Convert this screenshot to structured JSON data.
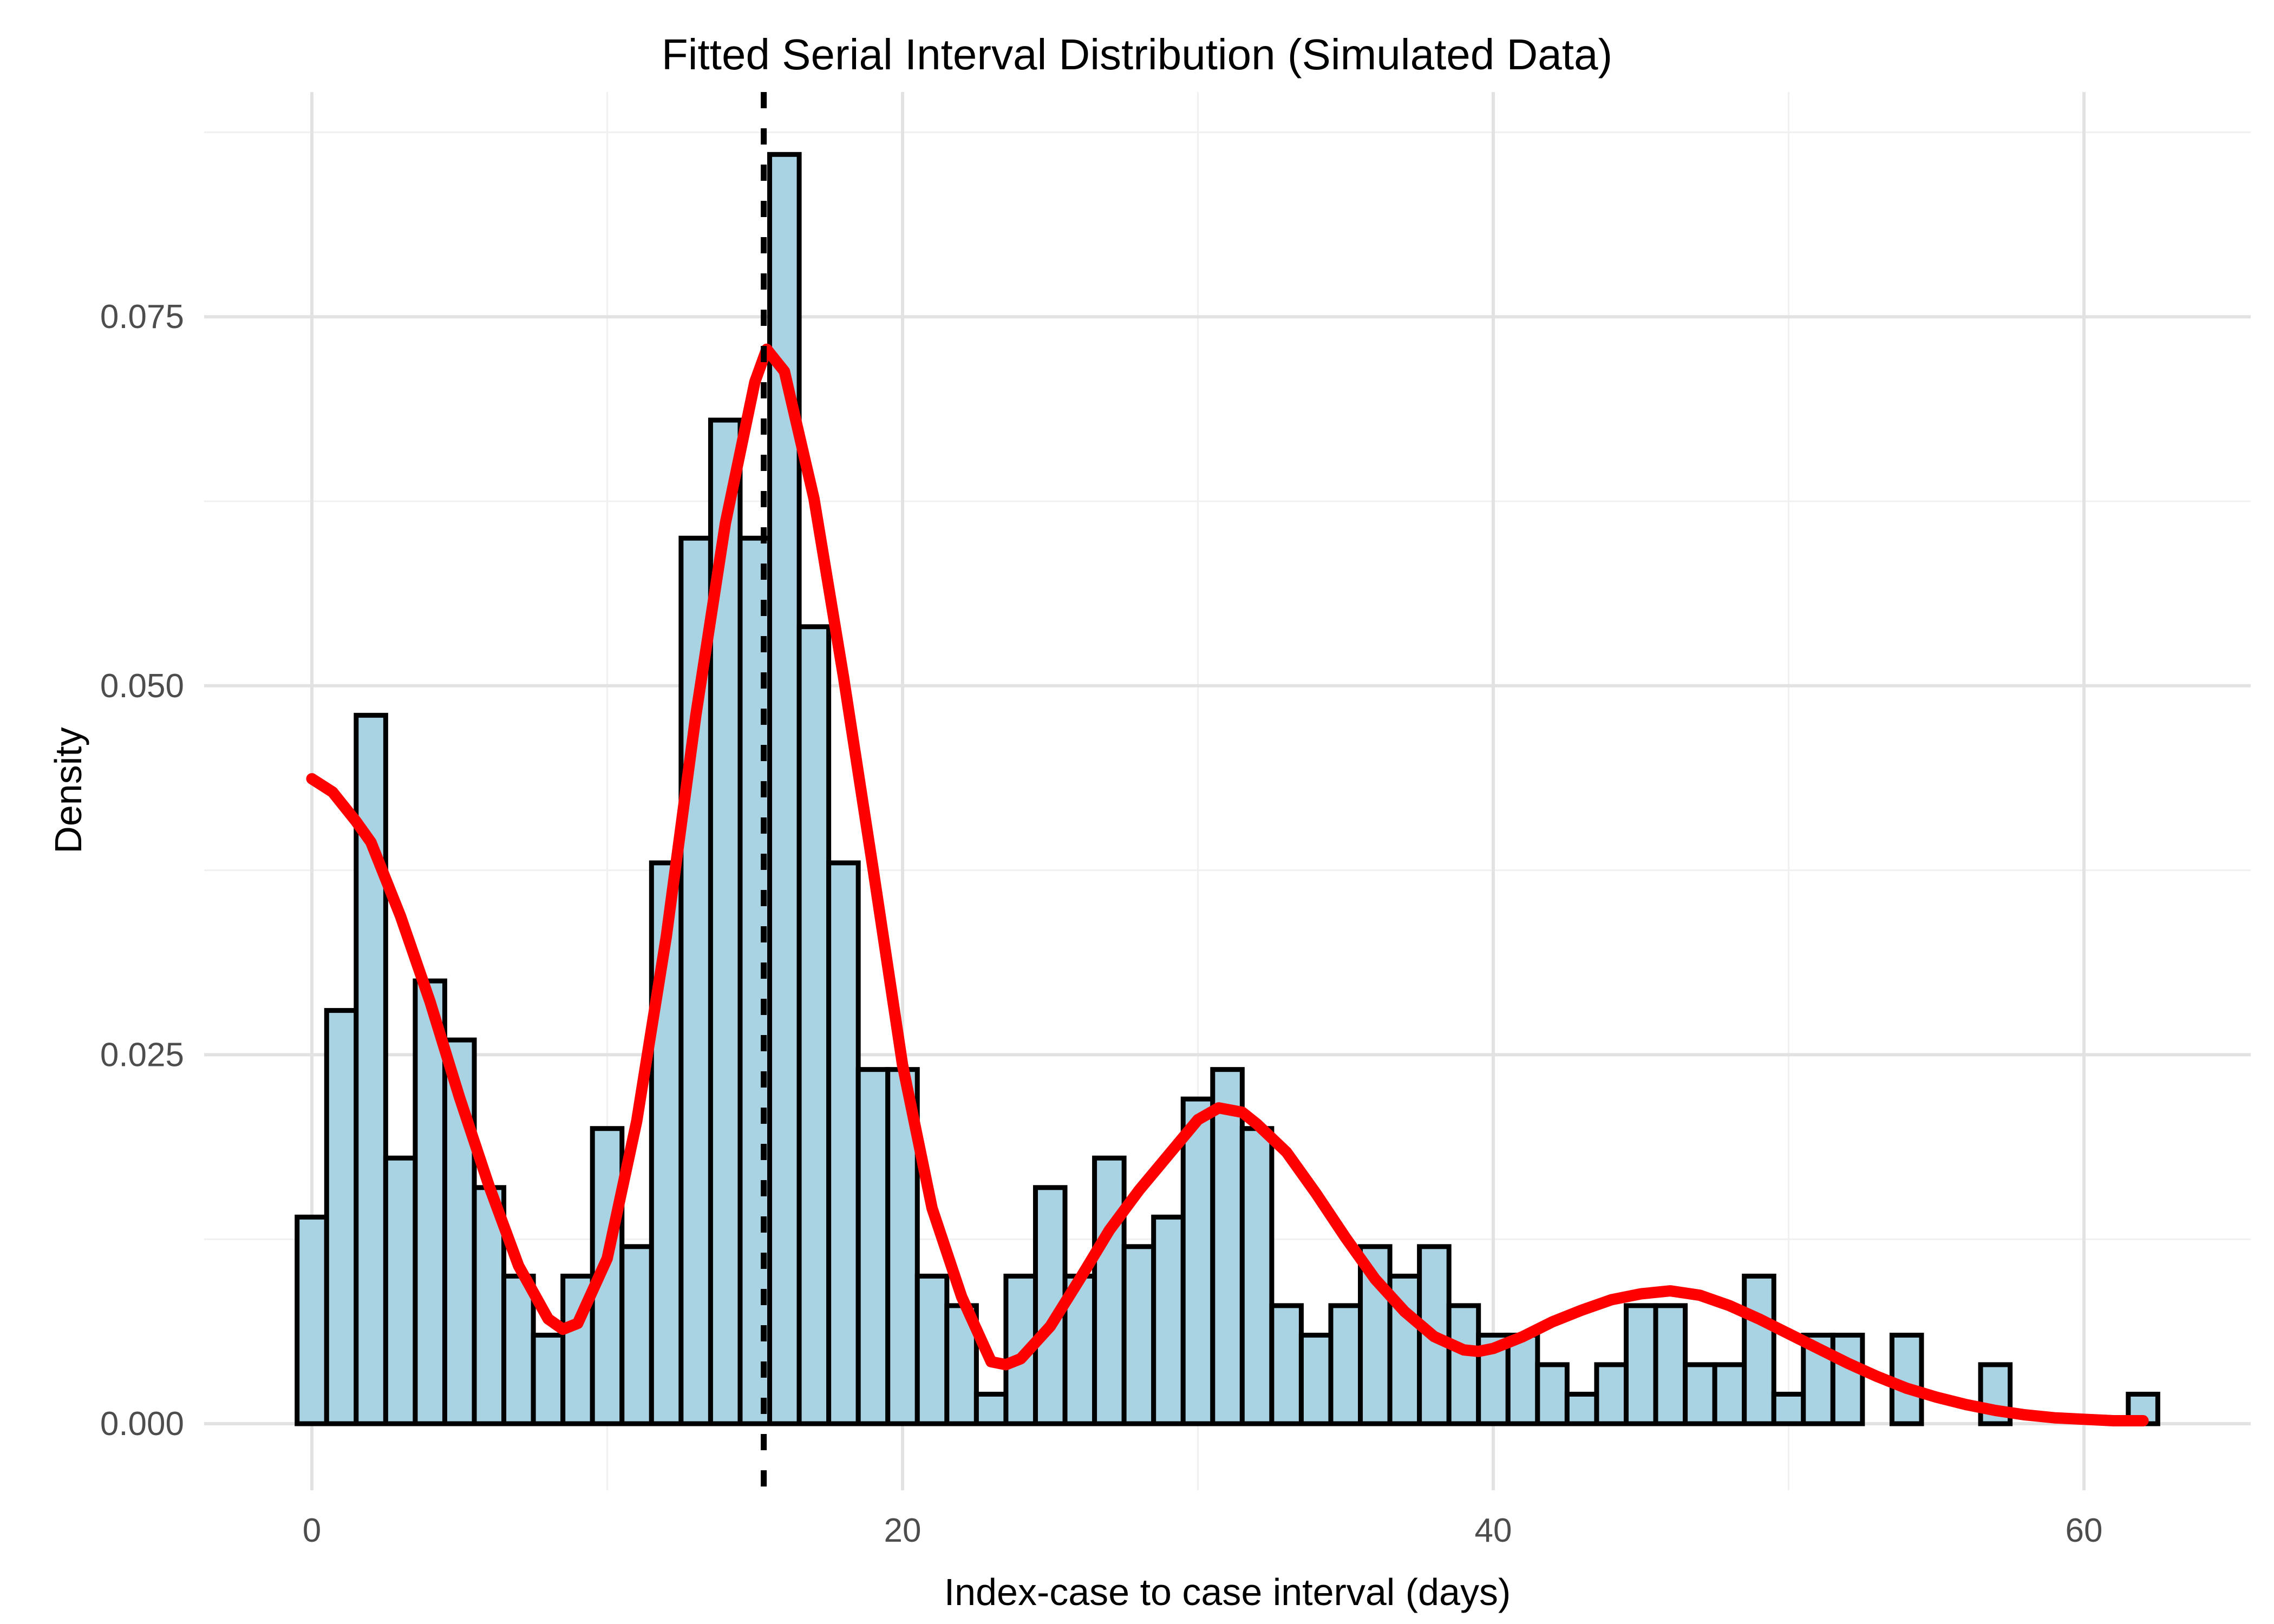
{
  "title": "Fitted Serial Interval Distribution (Simulated Data)",
  "axes": {
    "x": {
      "label": "Index-case to case interval (days)",
      "tick_values": [
        0,
        20,
        40,
        60
      ],
      "tick_labels": [
        "0",
        "20",
        "40",
        "60"
      ],
      "minor_ticks": [
        10,
        30,
        50
      ],
      "range": [
        -3.65,
        65.65
      ]
    },
    "y": {
      "label": "Density",
      "tick_values": [
        0,
        0.025,
        0.05,
        0.075
      ],
      "tick_labels": [
        "0.000",
        "0.025",
        "0.050",
        "0.075"
      ],
      "minor_ticks": [
        0.0125,
        0.0375,
        0.0625,
        0.0875
      ],
      "range": [
        -0.0046,
        0.0931
      ]
    }
  },
  "chart_data": {
    "type": "histogram_with_fitted_density_curve",
    "title": "Fitted Serial Interval Distribution (Simulated Data)",
    "xlabel": "Index-case to case interval (days)",
    "ylabel": "Density",
    "xlim": [
      -3.65,
      65.65
    ],
    "ylim": [
      -0.0046,
      0.0931
    ],
    "grid": "major_and_minor",
    "legend_position": "none",
    "bin_width": 1,
    "bin_centers": [
      0,
      1,
      2,
      3,
      4,
      5,
      6,
      7,
      8,
      9,
      10,
      11,
      12,
      13,
      14,
      15,
      16,
      17,
      18,
      19,
      20,
      21,
      22,
      23,
      24,
      25,
      26,
      27,
      28,
      29,
      30,
      31,
      32,
      33,
      34,
      35,
      36,
      37,
      38,
      39,
      40,
      41,
      42,
      43,
      44,
      45,
      46,
      47,
      48,
      49,
      50,
      51,
      52,
      53,
      54,
      55,
      56,
      57,
      58,
      59,
      60,
      61,
      62
    ],
    "densities": [
      0.014,
      0.028,
      0.048,
      0.018,
      0.03,
      0.026,
      0.016,
      0.01,
      0.006,
      0.01,
      0.02,
      0.012,
      0.038,
      0.06,
      0.068,
      0.06,
      0.086,
      0.054,
      0.038,
      0.024,
      0.024,
      0.01,
      0.008,
      0.002,
      0.01,
      0.016,
      0.01,
      0.018,
      0.012,
      0.014,
      0.022,
      0.024,
      0.02,
      0.008,
      0.006,
      0.008,
      0.012,
      0.01,
      0.012,
      0.008,
      0.006,
      0.006,
      0.004,
      0.002,
      0.004,
      0.008,
      0.008,
      0.004,
      0.004,
      0.01,
      0.002,
      0.006,
      0.006,
      0,
      0.006,
      0,
      0,
      0.004,
      0,
      0,
      0,
      0,
      0.002
    ],
    "fitted_curve_points": [
      [
        0,
        0.0437
      ],
      [
        0.7,
        0.0428
      ],
      [
        1.5,
        0.0408
      ],
      [
        2,
        0.0394
      ],
      [
        3,
        0.0344
      ],
      [
        4,
        0.0286
      ],
      [
        5,
        0.0221
      ],
      [
        6,
        0.0161
      ],
      [
        7,
        0.0107
      ],
      [
        8,
        0.0071
      ],
      [
        8.5,
        0.0064
      ],
      [
        9,
        0.0068
      ],
      [
        10,
        0.0112
      ],
      [
        11,
        0.0205
      ],
      [
        12,
        0.033
      ],
      [
        13,
        0.048
      ],
      [
        14,
        0.061
      ],
      [
        15,
        0.0706
      ],
      [
        15.4,
        0.0728
      ],
      [
        16,
        0.0713
      ],
      [
        17,
        0.0627
      ],
      [
        18,
        0.0506
      ],
      [
        19,
        0.0376
      ],
      [
        20,
        0.0243
      ],
      [
        21,
        0.0146
      ],
      [
        22,
        0.0086
      ],
      [
        23,
        0.0042
      ],
      [
        23.5,
        0.004
      ],
      [
        24,
        0.0044
      ],
      [
        25,
        0.0066
      ],
      [
        26,
        0.0098
      ],
      [
        27,
        0.0131
      ],
      [
        28,
        0.0158
      ],
      [
        29,
        0.0182
      ],
      [
        30,
        0.0206
      ],
      [
        30.7,
        0.0214
      ],
      [
        31.5,
        0.0211
      ],
      [
        32,
        0.0203
      ],
      [
        33,
        0.0184
      ],
      [
        34,
        0.0156
      ],
      [
        35,
        0.0126
      ],
      [
        36,
        0.0098
      ],
      [
        37,
        0.0076
      ],
      [
        38,
        0.0059
      ],
      [
        39,
        0.005
      ],
      [
        39.5,
        0.0049
      ],
      [
        40,
        0.0051
      ],
      [
        41,
        0.0059
      ],
      [
        42,
        0.0069
      ],
      [
        43,
        0.0077
      ],
      [
        44,
        0.0084
      ],
      [
        45,
        0.0088
      ],
      [
        46,
        0.009
      ],
      [
        47,
        0.0087
      ],
      [
        48,
        0.008
      ],
      [
        49,
        0.0071
      ],
      [
        50,
        0.0061
      ],
      [
        51,
        0.0051
      ],
      [
        52,
        0.0041
      ],
      [
        53,
        0.0032
      ],
      [
        54,
        0.0024
      ],
      [
        55,
        0.0018
      ],
      [
        56,
        0.0013
      ],
      [
        57,
        0.0009
      ],
      [
        58,
        0.0006
      ],
      [
        59,
        0.0004
      ],
      [
        60,
        0.0003
      ],
      [
        61,
        0.0002
      ],
      [
        62,
        0.0002
      ]
    ],
    "vline": {
      "x": 15.3,
      "style": "dashed"
    }
  },
  "colors": {
    "background": "#ffffff",
    "grid_major": "#e2e2e2",
    "grid_minor": "#f0f0f0",
    "bar_fill": "#a9d2e2",
    "bar_stroke": "#000000",
    "curve": "#ff0000",
    "vline": "#000000",
    "tick_label": "#4d4d4d",
    "title": "#000000"
  }
}
